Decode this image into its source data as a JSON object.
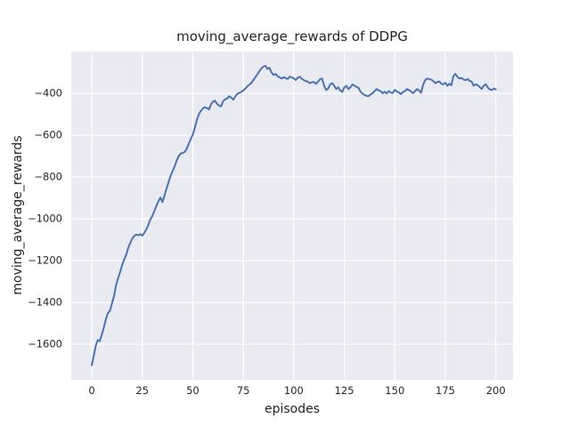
{
  "chart_data": {
    "type": "line",
    "title": "moving_average_rewards of DDPG",
    "xlabel": "episodes",
    "ylabel": "moving_average_rewards",
    "xlim": [
      -10.15,
      208.5
    ],
    "ylim": [
      -1770,
      -200
    ],
    "x_ticks": [
      0,
      25,
      50,
      75,
      100,
      125,
      150,
      175,
      200
    ],
    "y_ticks": [
      -400,
      -600,
      -800,
      -1000,
      -1200,
      -1400,
      -1600
    ],
    "grid": true,
    "legend": false,
    "style": {
      "line_color": "#4c72b0",
      "plot_bg": "#eaeaf2",
      "grid_color": "#ffffff",
      "text_color": "#262626",
      "line_width": 2
    },
    "series": [
      {
        "name": "moving_average_rewards",
        "points": [
          [
            0,
            -1700
          ],
          [
            1,
            -1655
          ],
          [
            2,
            -1605
          ],
          [
            3,
            -1580
          ],
          [
            4,
            -1585
          ],
          [
            5,
            -1552
          ],
          [
            6,
            -1520
          ],
          [
            7,
            -1480
          ],
          [
            8,
            -1450
          ],
          [
            9,
            -1440
          ],
          [
            10,
            -1405
          ],
          [
            11,
            -1370
          ],
          [
            12,
            -1320
          ],
          [
            13,
            -1285
          ],
          [
            14,
            -1255
          ],
          [
            15,
            -1222
          ],
          [
            16,
            -1195
          ],
          [
            17,
            -1173
          ],
          [
            18,
            -1140
          ],
          [
            19,
            -1117
          ],
          [
            20,
            -1095
          ],
          [
            21,
            -1082
          ],
          [
            22,
            -1075
          ],
          [
            23,
            -1078
          ],
          [
            24,
            -1073
          ],
          [
            25,
            -1080
          ],
          [
            26,
            -1067
          ],
          [
            27,
            -1050
          ],
          [
            28,
            -1030
          ],
          [
            29,
            -1003
          ],
          [
            30,
            -985
          ],
          [
            31,
            -962
          ],
          [
            32,
            -938
          ],
          [
            33,
            -915
          ],
          [
            34,
            -898
          ],
          [
            35,
            -920
          ],
          [
            36,
            -888
          ],
          [
            37,
            -855
          ],
          [
            38,
            -826
          ],
          [
            39,
            -795
          ],
          [
            40,
            -772
          ],
          [
            41,
            -750
          ],
          [
            42,
            -722
          ],
          [
            43,
            -700
          ],
          [
            44,
            -688
          ],
          [
            45,
            -685
          ],
          [
            46,
            -680
          ],
          [
            47,
            -665
          ],
          [
            48,
            -642
          ],
          [
            49,
            -618
          ],
          [
            50,
            -598
          ],
          [
            51,
            -565
          ],
          [
            52,
            -528
          ],
          [
            53,
            -500
          ],
          [
            54,
            -484
          ],
          [
            55,
            -472
          ],
          [
            56,
            -466
          ],
          [
            57,
            -470
          ],
          [
            58,
            -477
          ],
          [
            59,
            -452
          ],
          [
            60,
            -440
          ],
          [
            61,
            -435
          ],
          [
            62,
            -450
          ],
          [
            63,
            -458
          ],
          [
            64,
            -462
          ],
          [
            65,
            -438
          ],
          [
            66,
            -428
          ],
          [
            67,
            -425
          ],
          [
            68,
            -413
          ],
          [
            69,
            -420
          ],
          [
            70,
            -430
          ],
          [
            71,
            -415
          ],
          [
            72,
            -402
          ],
          [
            73,
            -398
          ],
          [
            74,
            -392
          ],
          [
            75,
            -386
          ],
          [
            76,
            -378
          ],
          [
            77,
            -366
          ],
          [
            78,
            -358
          ],
          [
            79,
            -350
          ],
          [
            80,
            -336
          ],
          [
            81,
            -322
          ],
          [
            82,
            -308
          ],
          [
            83,
            -294
          ],
          [
            84,
            -280
          ],
          [
            85,
            -272
          ],
          [
            86,
            -268
          ],
          [
            87,
            -283
          ],
          [
            88,
            -277
          ],
          [
            89,
            -300
          ],
          [
            90,
            -312
          ],
          [
            91,
            -307
          ],
          [
            92,
            -318
          ],
          [
            93,
            -323
          ],
          [
            94,
            -329
          ],
          [
            95,
            -322
          ],
          [
            96,
            -327
          ],
          [
            97,
            -331
          ],
          [
            98,
            -319
          ],
          [
            99,
            -324
          ],
          [
            100,
            -328
          ],
          [
            101,
            -336
          ],
          [
            102,
            -324
          ],
          [
            103,
            -321
          ],
          [
            104,
            -330
          ],
          [
            105,
            -337
          ],
          [
            106,
            -341
          ],
          [
            107,
            -345
          ],
          [
            108,
            -351
          ],
          [
            109,
            -347
          ],
          [
            110,
            -346
          ],
          [
            111,
            -354
          ],
          [
            112,
            -344
          ],
          [
            113,
            -332
          ],
          [
            114,
            -329
          ],
          [
            115,
            -363
          ],
          [
            116,
            -384
          ],
          [
            117,
            -377
          ],
          [
            118,
            -357
          ],
          [
            119,
            -351
          ],
          [
            120,
            -363
          ],
          [
            121,
            -379
          ],
          [
            122,
            -371
          ],
          [
            123,
            -385
          ],
          [
            124,
            -393
          ],
          [
            125,
            -371
          ],
          [
            126,
            -364
          ],
          [
            127,
            -379
          ],
          [
            128,
            -371
          ],
          [
            129,
            -357
          ],
          [
            130,
            -363
          ],
          [
            131,
            -369
          ],
          [
            132,
            -373
          ],
          [
            133,
            -391
          ],
          [
            134,
            -401
          ],
          [
            135,
            -408
          ],
          [
            136,
            -411
          ],
          [
            137,
            -413
          ],
          [
            138,
            -405
          ],
          [
            139,
            -399
          ],
          [
            140,
            -389
          ],
          [
            141,
            -379
          ],
          [
            142,
            -386
          ],
          [
            143,
            -389
          ],
          [
            144,
            -399
          ],
          [
            145,
            -392
          ],
          [
            146,
            -400
          ],
          [
            147,
            -389
          ],
          [
            148,
            -396
          ],
          [
            149,
            -398
          ],
          [
            150,
            -383
          ],
          [
            151,
            -391
          ],
          [
            152,
            -395
          ],
          [
            153,
            -403
          ],
          [
            154,
            -394
          ],
          [
            155,
            -388
          ],
          [
            156,
            -379
          ],
          [
            157,
            -384
          ],
          [
            158,
            -390
          ],
          [
            159,
            -399
          ],
          [
            160,
            -389
          ],
          [
            161,
            -379
          ],
          [
            162,
            -386
          ],
          [
            163,
            -397
          ],
          [
            164,
            -358
          ],
          [
            165,
            -337
          ],
          [
            166,
            -329
          ],
          [
            167,
            -331
          ],
          [
            168,
            -334
          ],
          [
            169,
            -341
          ],
          [
            170,
            -351
          ],
          [
            171,
            -345
          ],
          [
            172,
            -343
          ],
          [
            173,
            -353
          ],
          [
            174,
            -357
          ],
          [
            175,
            -349
          ],
          [
            176,
            -364
          ],
          [
            177,
            -354
          ],
          [
            178,
            -361
          ],
          [
            179,
            -317
          ],
          [
            180,
            -307
          ],
          [
            181,
            -321
          ],
          [
            182,
            -329
          ],
          [
            183,
            -326
          ],
          [
            184,
            -333
          ],
          [
            185,
            -337
          ],
          [
            186,
            -331
          ],
          [
            187,
            -339
          ],
          [
            188,
            -344
          ],
          [
            189,
            -363
          ],
          [
            190,
            -356
          ],
          [
            191,
            -361
          ],
          [
            192,
            -369
          ],
          [
            193,
            -379
          ],
          [
            194,
            -364
          ],
          [
            195,
            -356
          ],
          [
            196,
            -371
          ],
          [
            197,
            -381
          ],
          [
            198,
            -384
          ],
          [
            199,
            -377
          ],
          [
            200,
            -381
          ]
        ]
      }
    ]
  }
}
